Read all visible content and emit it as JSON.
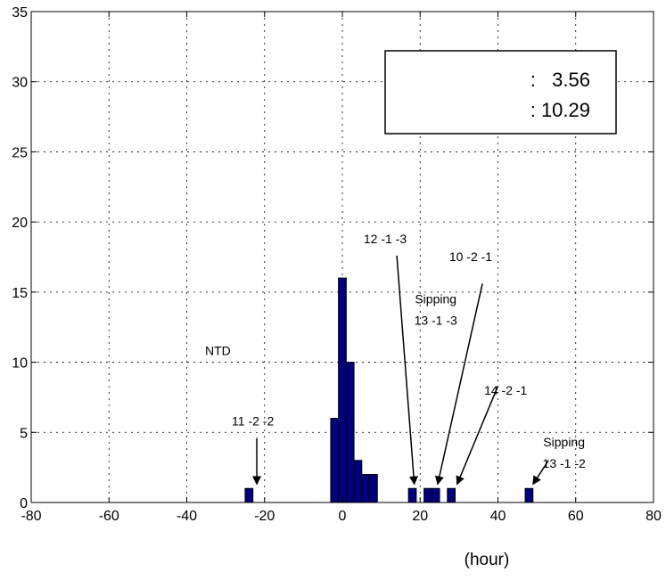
{
  "chart_data": {
    "type": "bar",
    "title": "",
    "xlabel": "(hour)",
    "ylabel": "",
    "xlim": [
      -80,
      80
    ],
    "ylim": [
      0,
      35
    ],
    "xticks": [
      -80,
      -60,
      -40,
      -20,
      0,
      20,
      40,
      60,
      80
    ],
    "yticks": [
      0,
      5,
      10,
      15,
      20,
      25,
      30,
      35
    ],
    "grid": true,
    "bar_color": "#00007f",
    "bar_width": 2,
    "bars": [
      {
        "x": -24,
        "value": 1
      },
      {
        "x": -2,
        "value": 6
      },
      {
        "x": 0,
        "value": 16
      },
      {
        "x": 2,
        "value": 10
      },
      {
        "x": 4,
        "value": 3
      },
      {
        "x": 6,
        "value": 2
      },
      {
        "x": 8,
        "value": 2
      },
      {
        "x": 18,
        "value": 1
      },
      {
        "x": 22,
        "value": 1
      },
      {
        "x": 24,
        "value": 1
      },
      {
        "x": 28,
        "value": 1
      },
      {
        "x": 48,
        "value": 1
      }
    ],
    "stats_box": {
      "line1": ":   3.56",
      "line2": ": 10.29"
    },
    "annotations": [
      {
        "lines": [
          "NTD"
        ],
        "arrow": false,
        "text_x": -32,
        "text_y": 10.5
      },
      {
        "lines": [
          "11 -2 -2"
        ],
        "arrow": true,
        "text_x": -23,
        "text_y": 5.5,
        "from": [
          -22,
          4.6
        ],
        "to": [
          -22,
          1.3
        ]
      },
      {
        "lines": [
          "12 -1 -3"
        ],
        "arrow": true,
        "text_x": 11,
        "text_y": 18.5,
        "from": [
          14,
          17.6
        ],
        "to": [
          18.5,
          1.3
        ]
      },
      {
        "lines": [
          "Sipping",
          "13 -1 -3"
        ],
        "arrow": false,
        "text_x": 24,
        "text_y": 14.2
      },
      {
        "lines": [
          "10 -2 -1"
        ],
        "arrow": true,
        "text_x": 33,
        "text_y": 17.2,
        "from": [
          36,
          15.6
        ],
        "to": [
          24.5,
          1.3
        ]
      },
      {
        "lines": [
          "14 -2 -1"
        ],
        "arrow": true,
        "text_x": 42,
        "text_y": 7.7,
        "from": [
          40,
          8.3
        ],
        "to": [
          29.5,
          1.3
        ]
      },
      {
        "lines": [
          "Sipping",
          "13 -1 -2"
        ],
        "arrow": true,
        "text_x": 57,
        "text_y": 4.0,
        "from": [
          53,
          3.0
        ],
        "to": [
          49,
          1.3
        ]
      }
    ]
  }
}
